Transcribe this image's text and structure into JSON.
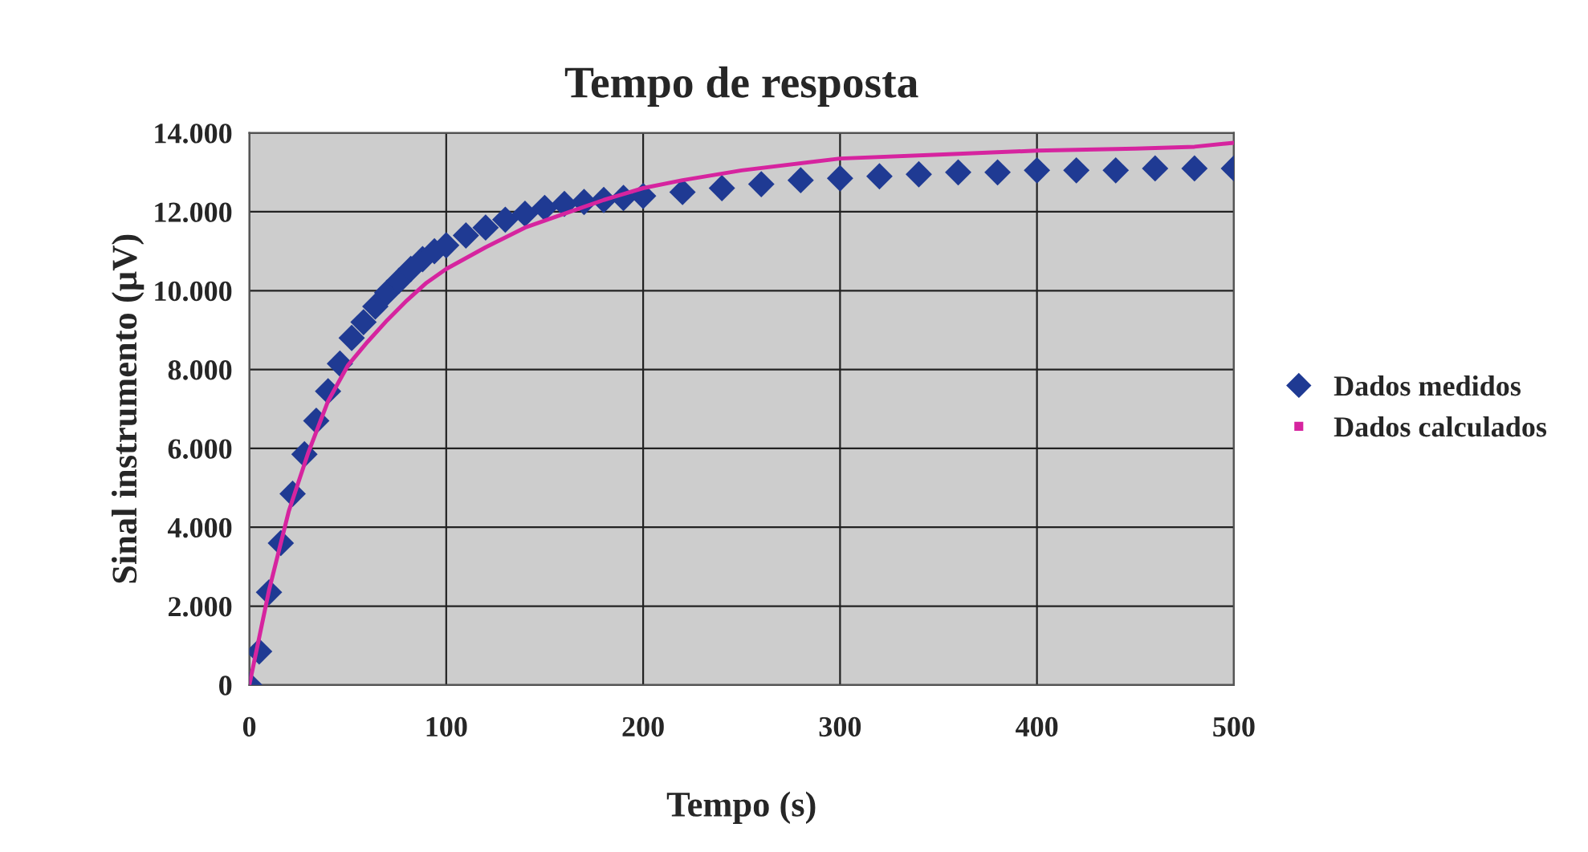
{
  "chart_data": {
    "type": "scatter",
    "title": "Tempo de resposta",
    "xlabel": "Tempo (s)",
    "ylabel": "Sinal instrumento (µV)",
    "xlim": [
      0,
      500
    ],
    "xticks": [
      0,
      100,
      200,
      300,
      400,
      500
    ],
    "ylim": [
      0,
      14000
    ],
    "yticks": [
      {
        "value": 0,
        "label": "0"
      },
      {
        "value": 2000,
        "label": "2.000"
      },
      {
        "value": 4000,
        "label": "4.000"
      },
      {
        "value": 6000,
        "label": "6.000"
      },
      {
        "value": 8000,
        "label": "8.000"
      },
      {
        "value": 10000,
        "label": "10.000"
      },
      {
        "value": 12000,
        "label": "12.000"
      },
      {
        "value": 14000,
        "label": "14.000"
      }
    ],
    "grid": true,
    "legend": "right",
    "series": [
      {
        "name": "Dados medidos",
        "marker": "diamond",
        "color": "#1f3a93",
        "x": [
          0,
          5,
          10,
          16,
          22,
          28,
          34,
          40,
          46,
          52,
          58,
          64,
          70,
          76,
          82,
          88,
          94,
          100,
          110,
          120,
          130,
          140,
          150,
          160,
          170,
          180,
          190,
          200,
          220,
          240,
          260,
          280,
          300,
          320,
          340,
          360,
          380,
          400,
          420,
          440,
          460,
          480,
          500
        ],
        "values": [
          0,
          850,
          2350,
          3600,
          4850,
          5850,
          6700,
          7450,
          8150,
          8800,
          9200,
          9600,
          9950,
          10250,
          10550,
          10800,
          11000,
          11150,
          11400,
          11600,
          11800,
          11950,
          12100,
          12200,
          12250,
          12300,
          12350,
          12400,
          12500,
          12600,
          12700,
          12800,
          12850,
          12900,
          12950,
          13000,
          13000,
          13050,
          13050,
          13050,
          13100,
          13100,
          13100
        ]
      },
      {
        "name": "Dados calculados",
        "type": "line",
        "color": "#d6249f",
        "x": [
          0,
          10,
          20,
          30,
          40,
          50,
          60,
          70,
          80,
          90,
          100,
          120,
          140,
          160,
          180,
          200,
          220,
          250,
          300,
          350,
          400,
          450,
          480,
          500
        ],
        "values": [
          0,
          2400,
          4400,
          5900,
          7200,
          8100,
          8700,
          9250,
          9750,
          10200,
          10550,
          11100,
          11600,
          11950,
          12300,
          12600,
          12800,
          13050,
          13350,
          13450,
          13550,
          13600,
          13650,
          13750
        ]
      }
    ]
  }
}
